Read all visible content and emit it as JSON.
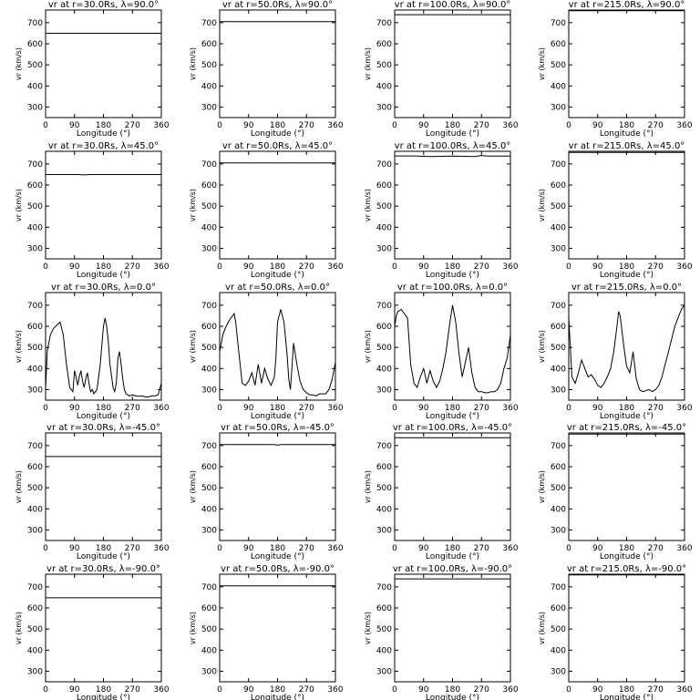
{
  "figure": {
    "xlabel": "Longitude (°)",
    "ylabel": "vr (km/s)"
  },
  "chart_data": [
    {
      "type": "line",
      "title": "vr at r=30.0Rs, λ=90.0°",
      "xlabel": "Longitude (°)",
      "ylabel": "vr (km/s)",
      "xlim": [
        0,
        360
      ],
      "ylim": [
        250,
        760
      ],
      "xticks": [
        0,
        90,
        180,
        270,
        360
      ],
      "yticks": [
        300,
        400,
        500,
        600,
        700
      ],
      "x": [
        0,
        360
      ],
      "y": [
        650,
        650
      ]
    },
    {
      "type": "line",
      "title": "vr at r=50.0Rs, λ=90.0°",
      "xlabel": "Longitude (°)",
      "ylabel": "vr (km/s)",
      "xlim": [
        0,
        360
      ],
      "ylim": [
        250,
        760
      ],
      "xticks": [
        0,
        90,
        180,
        270,
        360
      ],
      "yticks": [
        300,
        400,
        500,
        600,
        700
      ],
      "x": [
        0,
        360
      ],
      "y": [
        705,
        705
      ]
    },
    {
      "type": "line",
      "title": "vr at r=100.0Rs, λ=90.0°",
      "xlabel": "Longitude (°)",
      "ylabel": "vr (km/s)",
      "xlim": [
        0,
        360
      ],
      "ylim": [
        250,
        760
      ],
      "xticks": [
        0,
        90,
        180,
        270,
        360
      ],
      "yticks": [
        300,
        400,
        500,
        600,
        700
      ],
      "x": [
        0,
        360
      ],
      "y": [
        738,
        738
      ]
    },
    {
      "type": "line",
      "title": "vr at r=215.0Rs, λ=90.0°",
      "xlabel": "Longitude (°)",
      "ylabel": "vr (km/s)",
      "xlim": [
        0,
        360
      ],
      "ylim": [
        250,
        760
      ],
      "xticks": [
        0,
        90,
        180,
        270,
        360
      ],
      "yticks": [
        300,
        400,
        500,
        600,
        700
      ],
      "x": [
        0,
        360
      ],
      "y": [
        757,
        757
      ]
    },
    {
      "type": "line",
      "title": "vr at r=30.0Rs, λ=45.0°",
      "xlabel": "Longitude (°)",
      "ylabel": "vr (km/s)",
      "xlim": [
        0,
        360
      ],
      "ylim": [
        250,
        760
      ],
      "xticks": [
        0,
        90,
        180,
        270,
        360
      ],
      "yticks": [
        300,
        400,
        500,
        600,
        700
      ],
      "x": [
        0,
        100,
        120,
        140,
        270,
        360
      ],
      "y": [
        650,
        650,
        648,
        650,
        650,
        650
      ]
    },
    {
      "type": "line",
      "title": "vr at r=50.0Rs, λ=45.0°",
      "xlabel": "Longitude (°)",
      "ylabel": "vr (km/s)",
      "xlim": [
        0,
        360
      ],
      "ylim": [
        250,
        760
      ],
      "xticks": [
        0,
        90,
        180,
        270,
        360
      ],
      "yticks": [
        300,
        400,
        500,
        600,
        700
      ],
      "x": [
        0,
        360
      ],
      "y": [
        705,
        705
      ]
    },
    {
      "type": "line",
      "title": "vr at r=100.0Rs, λ=45.0°",
      "xlabel": "Longitude (°)",
      "ylabel": "vr (km/s)",
      "xlim": [
        0,
        360
      ],
      "ylim": [
        250,
        760
      ],
      "xticks": [
        0,
        90,
        180,
        270,
        360
      ],
      "yticks": [
        300,
        400,
        500,
        600,
        700
      ],
      "x": [
        0,
        60,
        110,
        180,
        250,
        270,
        290,
        360
      ],
      "y": [
        738,
        738,
        735,
        737,
        735,
        740,
        737,
        737
      ]
    },
    {
      "type": "line",
      "title": "vr at r=215.0Rs, λ=45.0°",
      "xlabel": "Longitude (°)",
      "ylabel": "vr (km/s)",
      "xlim": [
        0,
        360
      ],
      "ylim": [
        250,
        760
      ],
      "xticks": [
        0,
        90,
        180,
        270,
        360
      ],
      "yticks": [
        300,
        400,
        500,
        600,
        700
      ],
      "x": [
        0,
        360
      ],
      "y": [
        755,
        755
      ]
    },
    {
      "type": "line",
      "title": "vr at r=30.0Rs, λ=0.0°",
      "xlabel": "Longitude (°)",
      "ylabel": "vr (km/s)",
      "xlim": [
        0,
        360
      ],
      "ylim": [
        250,
        760
      ],
      "xticks": [
        0,
        90,
        180,
        270,
        360
      ],
      "yticks": [
        300,
        400,
        500,
        600,
        700
      ],
      "x": [
        0,
        5,
        15,
        25,
        35,
        45,
        55,
        65,
        75,
        85,
        90,
        95,
        100,
        105,
        110,
        115,
        120,
        125,
        130,
        135,
        140,
        145,
        150,
        160,
        170,
        180,
        185,
        190,
        195,
        200,
        210,
        215,
        220,
        225,
        230,
        235,
        240,
        245,
        250,
        260,
        270,
        280,
        290,
        300,
        310,
        320,
        330,
        340,
        350,
        360
      ],
      "y": [
        300,
        480,
        560,
        590,
        605,
        620,
        560,
        420,
        310,
        290,
        390,
        360,
        320,
        360,
        390,
        340,
        310,
        350,
        380,
        330,
        290,
        300,
        280,
        300,
        420,
        600,
        640,
        600,
        530,
        420,
        310,
        290,
        330,
        450,
        480,
        420,
        350,
        300,
        280,
        270,
        275,
        270,
        268,
        270,
        265,
        265,
        270,
        270,
        275,
        330
      ]
    },
    {
      "type": "line",
      "title": "vr at r=50.0Rs, λ=0.0°",
      "xlabel": "Longitude (°)",
      "ylabel": "vr (km/s)",
      "xlim": [
        0,
        360
      ],
      "ylim": [
        250,
        760
      ],
      "xticks": [
        0,
        90,
        180,
        270,
        360
      ],
      "yticks": [
        300,
        400,
        500,
        600,
        700
      ],
      "x": [
        0,
        5,
        10,
        20,
        30,
        40,
        45,
        50,
        60,
        70,
        80,
        90,
        100,
        110,
        120,
        130,
        140,
        150,
        160,
        170,
        175,
        180,
        190,
        200,
        210,
        215,
        220,
        225,
        230,
        240,
        250,
        260,
        270,
        280,
        290,
        300,
        310,
        320,
        330,
        340,
        350,
        360
      ],
      "y": [
        480,
        520,
        560,
        600,
        630,
        650,
        660,
        620,
        470,
        330,
        320,
        340,
        380,
        320,
        420,
        330,
        400,
        350,
        320,
        360,
        450,
        620,
        680,
        620,
        460,
        350,
        300,
        410,
        520,
        420,
        340,
        300,
        285,
        275,
        275,
        270,
        280,
        280,
        280,
        300,
        350,
        430
      ]
    },
    {
      "type": "line",
      "title": "vr at r=100.0Rs, λ=0.0°",
      "xlabel": "Longitude (°)",
      "ylabel": "vr (km/s)",
      "xlim": [
        0,
        360
      ],
      "ylim": [
        250,
        760
      ],
      "xticks": [
        0,
        90,
        180,
        270,
        360
      ],
      "yticks": [
        300,
        400,
        500,
        600,
        700
      ],
      "x": [
        0,
        5,
        10,
        20,
        30,
        40,
        50,
        60,
        70,
        80,
        90,
        100,
        110,
        120,
        130,
        140,
        150,
        160,
        170,
        180,
        190,
        200,
        210,
        220,
        230,
        240,
        250,
        260,
        270,
        280,
        290,
        300,
        310,
        320,
        330,
        340,
        350,
        360
      ],
      "y": [
        600,
        650,
        670,
        680,
        660,
        640,
        420,
        330,
        310,
        360,
        400,
        330,
        390,
        340,
        310,
        340,
        400,
        480,
        600,
        700,
        620,
        470,
        360,
        430,
        500,
        380,
        310,
        290,
        290,
        285,
        285,
        290,
        290,
        300,
        330,
        400,
        450,
        560
      ]
    },
    {
      "type": "line",
      "title": "vr at r=215.0Rs, λ=0.0°",
      "xlabel": "Longitude (°)",
      "ylabel": "vr (km/s)",
      "xlim": [
        0,
        360
      ],
      "ylim": [
        250,
        760
      ],
      "xticks": [
        0,
        90,
        180,
        270,
        360
      ],
      "yticks": [
        300,
        400,
        500,
        600,
        700
      ],
      "x": [
        0,
        10,
        20,
        30,
        40,
        50,
        60,
        70,
        80,
        90,
        100,
        110,
        120,
        130,
        140,
        150,
        155,
        160,
        170,
        180,
        190,
        200,
        210,
        220,
        230,
        240,
        250,
        260,
        270,
        280,
        290,
        300,
        310,
        320,
        330,
        340,
        350,
        360
      ],
      "y": [
        640,
        360,
        330,
        380,
        440,
        400,
        360,
        370,
        350,
        320,
        310,
        330,
        360,
        400,
        480,
        600,
        670,
        650,
        520,
        410,
        380,
        480,
        350,
        300,
        290,
        295,
        300,
        290,
        300,
        320,
        360,
        420,
        480,
        540,
        600,
        640,
        680,
        700
      ]
    },
    {
      "type": "line",
      "title": "vr at r=30.0Rs, λ=-45.0°",
      "xlabel": "Longitude (°)",
      "ylabel": "vr (km/s)",
      "xlim": [
        0,
        360
      ],
      "ylim": [
        250,
        760
      ],
      "xticks": [
        0,
        90,
        180,
        270,
        360
      ],
      "yticks": [
        300,
        400,
        500,
        600,
        700
      ],
      "x": [
        0,
        360
      ],
      "y": [
        648,
        648
      ]
    },
    {
      "type": "line",
      "title": "vr at r=50.0Rs, λ=-45.0°",
      "xlabel": "Longitude (°)",
      "ylabel": "vr (km/s)",
      "xlim": [
        0,
        360
      ],
      "ylim": [
        250,
        760
      ],
      "xticks": [
        0,
        90,
        180,
        270,
        360
      ],
      "yticks": [
        300,
        400,
        500,
        600,
        700
      ],
      "x": [
        0,
        170,
        180,
        190,
        360
      ],
      "y": [
        705,
        705,
        702,
        705,
        705
      ]
    },
    {
      "type": "line",
      "title": "vr at r=100.0Rs, λ=-45.0°",
      "xlabel": "Longitude (°)",
      "ylabel": "vr (km/s)",
      "xlim": [
        0,
        360
      ],
      "ylim": [
        250,
        760
      ],
      "xticks": [
        0,
        90,
        180,
        270,
        360
      ],
      "yticks": [
        300,
        400,
        500,
        600,
        700
      ],
      "x": [
        0,
        360
      ],
      "y": [
        737,
        737
      ]
    },
    {
      "type": "line",
      "title": "vr at r=215.0Rs, λ=-45.0°",
      "xlabel": "Longitude (°)",
      "ylabel": "vr (km/s)",
      "xlim": [
        0,
        360
      ],
      "ylim": [
        250,
        760
      ],
      "xticks": [
        0,
        90,
        180,
        270,
        360
      ],
      "yticks": [
        300,
        400,
        500,
        600,
        700
      ],
      "x": [
        0,
        360
      ],
      "y": [
        755,
        755
      ]
    },
    {
      "type": "line",
      "title": "vr at r=30.0Rs, λ=-90.0°",
      "xlabel": "Longitude (°)",
      "ylabel": "vr (km/s)",
      "xlim": [
        0,
        360
      ],
      "ylim": [
        250,
        760
      ],
      "xticks": [
        0,
        90,
        180,
        270,
        360
      ],
      "yticks": [
        300,
        400,
        500,
        600,
        700
      ],
      "x": [
        0,
        360
      ],
      "y": [
        648,
        648
      ]
    },
    {
      "type": "line",
      "title": "vr at r=50.0Rs, λ=-90.0°",
      "xlabel": "Longitude (°)",
      "ylabel": "vr (km/s)",
      "xlim": [
        0,
        360
      ],
      "ylim": [
        250,
        760
      ],
      "xticks": [
        0,
        90,
        180,
        270,
        360
      ],
      "yticks": [
        300,
        400,
        500,
        600,
        700
      ],
      "x": [
        0,
        360
      ],
      "y": [
        705,
        705
      ]
    },
    {
      "type": "line",
      "title": "vr at r=100.0Rs, λ=-90.0°",
      "xlabel": "Longitude (°)",
      "ylabel": "vr (km/s)",
      "xlim": [
        0,
        360
      ],
      "ylim": [
        250,
        760
      ],
      "xticks": [
        0,
        90,
        180,
        270,
        360
      ],
      "yticks": [
        300,
        400,
        500,
        600,
        700
      ],
      "x": [
        0,
        360
      ],
      "y": [
        738,
        738
      ]
    },
    {
      "type": "line",
      "title": "vr at r=215.0Rs, λ=-90.0°",
      "xlabel": "Longitude (°)",
      "ylabel": "vr (km/s)",
      "xlim": [
        0,
        360
      ],
      "ylim": [
        250,
        760
      ],
      "xticks": [
        0,
        90,
        180,
        270,
        360
      ],
      "yticks": [
        300,
        400,
        500,
        600,
        700
      ],
      "x": [
        0,
        360
      ],
      "y": [
        757,
        757
      ]
    }
  ]
}
